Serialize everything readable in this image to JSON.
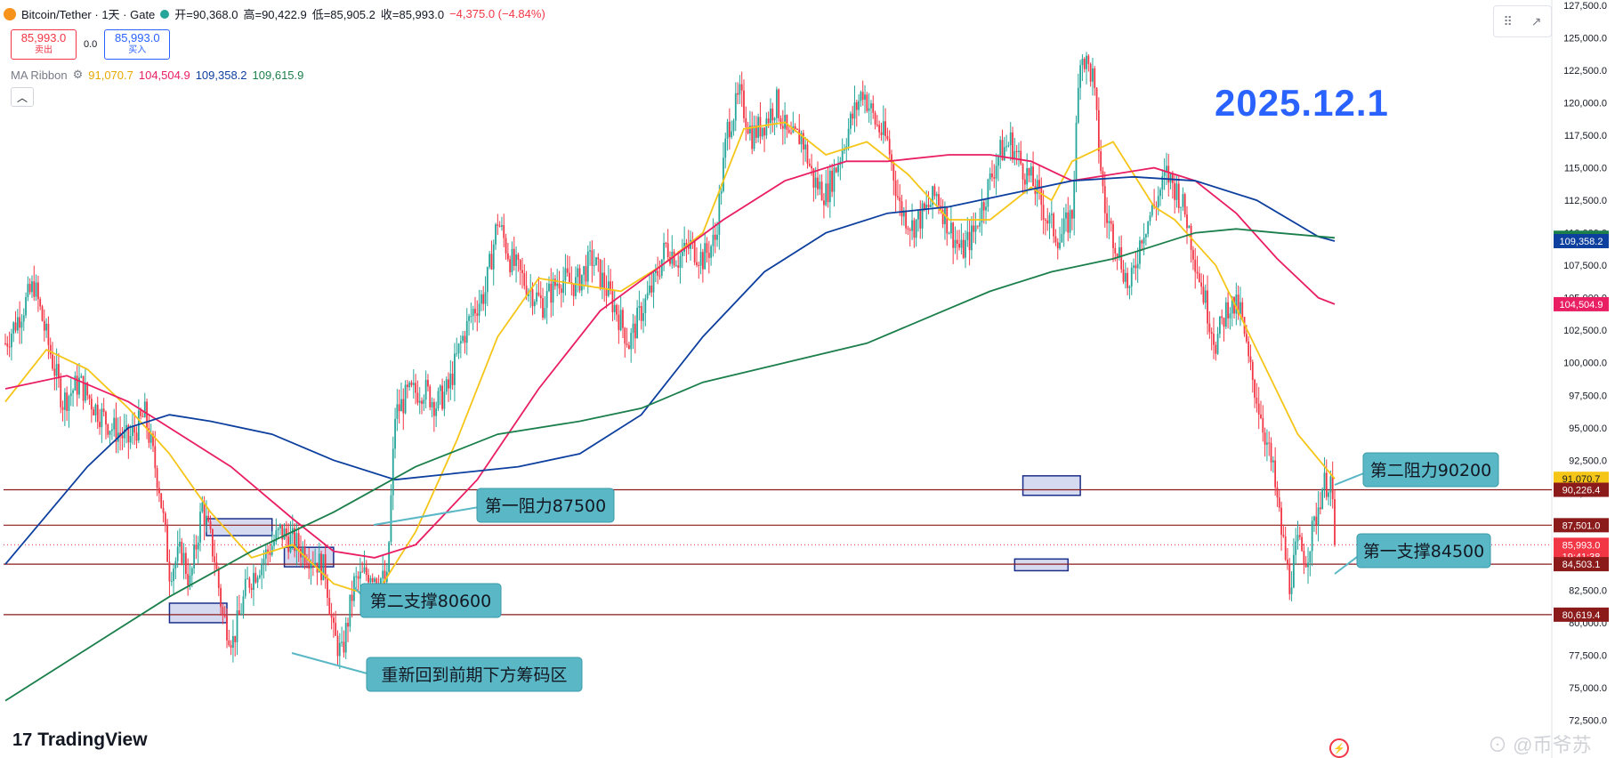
{
  "header": {
    "symbol": "Bitcoin/Tether · 1天 · Gate",
    "open_label": "开=90,368.0",
    "high_label": "高=90,422.9",
    "low_label": "低=85,905.2",
    "close_label": "收=85,993.0",
    "change": "−4,375.0 (−4.84%)"
  },
  "trade": {
    "sell_price": "85,993.0",
    "sell_label": "卖出",
    "spread": "0.0",
    "buy_price": "85,993.0",
    "buy_label": "买入"
  },
  "indicator": {
    "name": "MA Ribbon",
    "values": [
      "91,070.7",
      "104,504.9",
      "109,358.2",
      "109,615.9"
    ]
  },
  "date_tag": "2025.12.1",
  "branding": {
    "logo": "TradingView",
    "watermark": "币爷苏"
  },
  "colors": {
    "up": "#26a69a",
    "down": "#f23645",
    "ma1": "#f5c518",
    "ma2": "#e91e63",
    "ma3": "#0d3f9e",
    "ma4": "#1b7f4b",
    "level_line": "#8b1a1a",
    "callout": "#5ab8c6",
    "box": "#1a2f8a"
  },
  "chart_data": {
    "type": "candlestick",
    "title": "Bitcoin/Tether · 1天 · Gate",
    "ylim": [
      70000,
      127500
    ],
    "y_ticks": [
      72500,
      75000,
      77500,
      80000,
      82500,
      85000,
      87500,
      90000,
      92500,
      95000,
      97500,
      100000,
      102500,
      105000,
      107500,
      110000,
      112500,
      115000,
      117500,
      120000,
      122500,
      125000,
      127500
    ],
    "y_tick_labels": [
      "72,500.0",
      "75,000.0",
      "77,500.0",
      "80,000.0",
      "82,500.0",
      "85,000.0",
      "87,500.0",
      "90,000.0",
      "92,500.0",
      "95,000.0",
      "97,500.0",
      "100,000.0",
      "102,500.0",
      "105,000.0",
      "107,500.0",
      "110,000.0",
      "112,500.0",
      "115,000.0",
      "117,500.0",
      "120,000.0",
      "122,500.0",
      "125,000.0",
      "127,500.0"
    ],
    "price_path": [
      [
        0,
        101500
      ],
      [
        8,
        104000
      ],
      [
        14,
        106000
      ],
      [
        20,
        102000
      ],
      [
        28,
        97000
      ],
      [
        36,
        98500
      ],
      [
        44,
        96500
      ],
      [
        52,
        95000
      ],
      [
        60,
        94000
      ],
      [
        68,
        96000
      ],
      [
        75,
        90500
      ],
      [
        80,
        84000
      ],
      [
        86,
        85500
      ],
      [
        90,
        83000
      ],
      [
        96,
        89000
      ],
      [
        102,
        85000
      ],
      [
        106,
        80500
      ],
      [
        111,
        78600
      ],
      [
        118,
        83000
      ],
      [
        126,
        85000
      ],
      [
        134,
        87000
      ],
      [
        142,
        86000
      ],
      [
        150,
        85000
      ],
      [
        156,
        84000
      ],
      [
        160,
        79000
      ],
      [
        164,
        77500
      ],
      [
        170,
        83000
      ],
      [
        178,
        84000
      ],
      [
        186,
        83000
      ],
      [
        190,
        96000
      ],
      [
        196,
        97500
      ],
      [
        204,
        98000
      ],
      [
        210,
        96800
      ],
      [
        216,
        98000
      ],
      [
        222,
        101500
      ],
      [
        228,
        104000
      ],
      [
        234,
        105500
      ],
      [
        240,
        111000
      ],
      [
        246,
        108000
      ],
      [
        254,
        106000
      ],
      [
        262,
        104500
      ],
      [
        270,
        106500
      ],
      [
        278,
        106000
      ],
      [
        286,
        108000
      ],
      [
        292,
        106000
      ],
      [
        298,
        104000
      ],
      [
        304,
        101500
      ],
      [
        310,
        104000
      ],
      [
        316,
        106000
      ],
      [
        322,
        109000
      ],
      [
        328,
        108000
      ],
      [
        334,
        109000
      ],
      [
        340,
        108000
      ],
      [
        346,
        109500
      ],
      [
        352,
        118000
      ],
      [
        358,
        120500
      ],
      [
        364,
        117500
      ],
      [
        370,
        118500
      ],
      [
        376,
        120000
      ],
      [
        382,
        117000
      ],
      [
        388,
        117500
      ],
      [
        394,
        114000
      ],
      [
        400,
        113000
      ],
      [
        406,
        115500
      ],
      [
        412,
        118500
      ],
      [
        418,
        121000
      ],
      [
        424,
        118500
      ],
      [
        430,
        117000
      ],
      [
        436,
        112000
      ],
      [
        442,
        110500
      ],
      [
        448,
        111500
      ],
      [
        454,
        113000
      ],
      [
        460,
        110500
      ],
      [
        466,
        108500
      ],
      [
        472,
        110000
      ],
      [
        478,
        113000
      ],
      [
        484,
        116000
      ],
      [
        490,
        117000
      ],
      [
        496,
        115000
      ],
      [
        502,
        113500
      ],
      [
        508,
        111000
      ],
      [
        514,
        109500
      ],
      [
        520,
        111500
      ],
      [
        524,
        124000
      ],
      [
        530,
        122000
      ],
      [
        536,
        111500
      ],
      [
        542,
        109000
      ],
      [
        548,
        105500
      ],
      [
        554,
        110000
      ],
      [
        560,
        112000
      ],
      [
        566,
        114500
      ],
      [
        572,
        113000
      ],
      [
        576,
        111000
      ],
      [
        580,
        108000
      ],
      [
        586,
        104000
      ],
      [
        590,
        101500
      ],
      [
        596,
        104500
      ],
      [
        602,
        104000
      ],
      [
        606,
        100000
      ],
      [
        612,
        96000
      ],
      [
        618,
        91500
      ],
      [
        622,
        87000
      ],
      [
        626,
        83000
      ],
      [
        630,
        86000
      ],
      [
        634,
        85000
      ],
      [
        638,
        87500
      ],
      [
        642,
        90500
      ],
      [
        646,
        91000
      ],
      [
        648,
        85993
      ]
    ],
    "series": [
      {
        "name": "MA Ribbon",
        "value_last": 91070.7,
        "color": "#f5c518",
        "points": [
          [
            0,
            97000
          ],
          [
            20,
            101000
          ],
          [
            40,
            99500
          ],
          [
            60,
            96500
          ],
          [
            80,
            93000
          ],
          [
            100,
            88500
          ],
          [
            120,
            85000
          ],
          [
            140,
            86000
          ],
          [
            160,
            83000
          ],
          [
            180,
            82000
          ],
          [
            200,
            87000
          ],
          [
            220,
            94000
          ],
          [
            240,
            102000
          ],
          [
            260,
            106500
          ],
          [
            280,
            106000
          ],
          [
            300,
            105500
          ],
          [
            320,
            107500
          ],
          [
            340,
            110000
          ],
          [
            360,
            118000
          ],
          [
            380,
            118500
          ],
          [
            400,
            116000
          ],
          [
            420,
            117000
          ],
          [
            440,
            114500
          ],
          [
            460,
            111000
          ],
          [
            480,
            111000
          ],
          [
            500,
            113500
          ],
          [
            510,
            112500
          ],
          [
            520,
            115500
          ],
          [
            540,
            117000
          ],
          [
            560,
            112000
          ],
          [
            570,
            111000
          ],
          [
            590,
            107500
          ],
          [
            610,
            101000
          ],
          [
            630,
            94500
          ],
          [
            648,
            91070
          ]
        ]
      },
      {
        "name": "MA Ribbon",
        "value_last": 104504.9,
        "color": "#e91e63",
        "points": [
          [
            0,
            98000
          ],
          [
            30,
            99000
          ],
          [
            60,
            97000
          ],
          [
            80,
            95000
          ],
          [
            110,
            92000
          ],
          [
            140,
            88000
          ],
          [
            160,
            85500
          ],
          [
            180,
            85000
          ],
          [
            200,
            86000
          ],
          [
            230,
            91000
          ],
          [
            260,
            98000
          ],
          [
            290,
            104000
          ],
          [
            320,
            107500
          ],
          [
            350,
            111000
          ],
          [
            380,
            114000
          ],
          [
            410,
            115500
          ],
          [
            430,
            115500
          ],
          [
            460,
            116000
          ],
          [
            480,
            116000
          ],
          [
            500,
            115500
          ],
          [
            520,
            114000
          ],
          [
            540,
            114500
          ],
          [
            560,
            115000
          ],
          [
            580,
            114000
          ],
          [
            600,
            111500
          ],
          [
            620,
            108000
          ],
          [
            640,
            105000
          ],
          [
            648,
            104505
          ]
        ]
      },
      {
        "name": "MA Ribbon",
        "value_last": 109358.2,
        "color": "#0d3f9e",
        "points": [
          [
            0,
            84500
          ],
          [
            40,
            92000
          ],
          [
            60,
            95000
          ],
          [
            80,
            96000
          ],
          [
            100,
            95500
          ],
          [
            130,
            94500
          ],
          [
            160,
            92500
          ],
          [
            190,
            91000
          ],
          [
            220,
            91500
          ],
          [
            250,
            92000
          ],
          [
            280,
            93000
          ],
          [
            310,
            96000
          ],
          [
            340,
            102000
          ],
          [
            370,
            107000
          ],
          [
            400,
            110000
          ],
          [
            430,
            111500
          ],
          [
            460,
            112000
          ],
          [
            490,
            113000
          ],
          [
            520,
            114000
          ],
          [
            550,
            114300
          ],
          [
            580,
            114000
          ],
          [
            610,
            112500
          ],
          [
            640,
            109700
          ],
          [
            648,
            109358
          ]
        ]
      },
      {
        "name": "MA Ribbon",
        "value_last": 109615.9,
        "color": "#1b7f4b",
        "points": [
          [
            0,
            74000
          ],
          [
            40,
            78000
          ],
          [
            80,
            82000
          ],
          [
            120,
            85500
          ],
          [
            160,
            88500
          ],
          [
            200,
            92000
          ],
          [
            240,
            94500
          ],
          [
            280,
            95500
          ],
          [
            310,
            96500
          ],
          [
            340,
            98500
          ],
          [
            380,
            100000
          ],
          [
            420,
            101500
          ],
          [
            450,
            103500
          ],
          [
            480,
            105500
          ],
          [
            510,
            107000
          ],
          [
            540,
            108000
          ],
          [
            560,
            109000
          ],
          [
            580,
            110000
          ],
          [
            600,
            110300
          ],
          [
            620,
            110000
          ],
          [
            648,
            109616
          ]
        ]
      }
    ],
    "price_labels": [
      {
        "value": 109615.9,
        "text": "109,615.9",
        "color": "#1b7f4b"
      },
      {
        "value": 109358.2,
        "text": "109,358.2",
        "color": "#0d3f9e"
      },
      {
        "value": 104504.9,
        "text": "104,504.9",
        "color": "#e91e63"
      },
      {
        "value": 91070.7,
        "text": "91,070.7",
        "color": "#f5c518"
      },
      {
        "value": 90226.4,
        "text": "90,226.4",
        "color": "#8b1a1a"
      },
      {
        "value": 87501.0,
        "text": "87,501.0",
        "color": "#8b1a1a"
      },
      {
        "value": 85993.0,
        "text": "85,993.0",
        "color": "#f23645",
        "sub": "19:41:38"
      },
      {
        "value": 84503.1,
        "text": "84,503.1",
        "color": "#8b1a1a"
      },
      {
        "value": 80619.4,
        "text": "80,619.4",
        "color": "#8b1a1a"
      }
    ],
    "horizontal_levels": [
      90226.4,
      87501.0,
      84503.1,
      80619.4
    ],
    "current_price": 85993.0,
    "annotations": [
      {
        "text": "第一阻力87500"
      },
      {
        "text": "第二支撑80600"
      },
      {
        "text": "重新回到前期下方筹码区"
      },
      {
        "text": "第二阻力90200"
      },
      {
        "text": "第一支撑84500"
      }
    ],
    "zones": [
      {
        "x1": 80,
        "x2": 108,
        "y1": 80000,
        "y2": 81500
      },
      {
        "x1": 98,
        "x2": 130,
        "y1": 86700,
        "y2": 88000
      },
      {
        "x1": 136,
        "x2": 160,
        "y1": 84300,
        "y2": 85800
      },
      {
        "x1": 496,
        "x2": 524,
        "y1": 89800,
        "y2": 91300
      },
      {
        "x1": 492,
        "x2": 518,
        "y1": 84000,
        "y2": 84900
      }
    ]
  }
}
